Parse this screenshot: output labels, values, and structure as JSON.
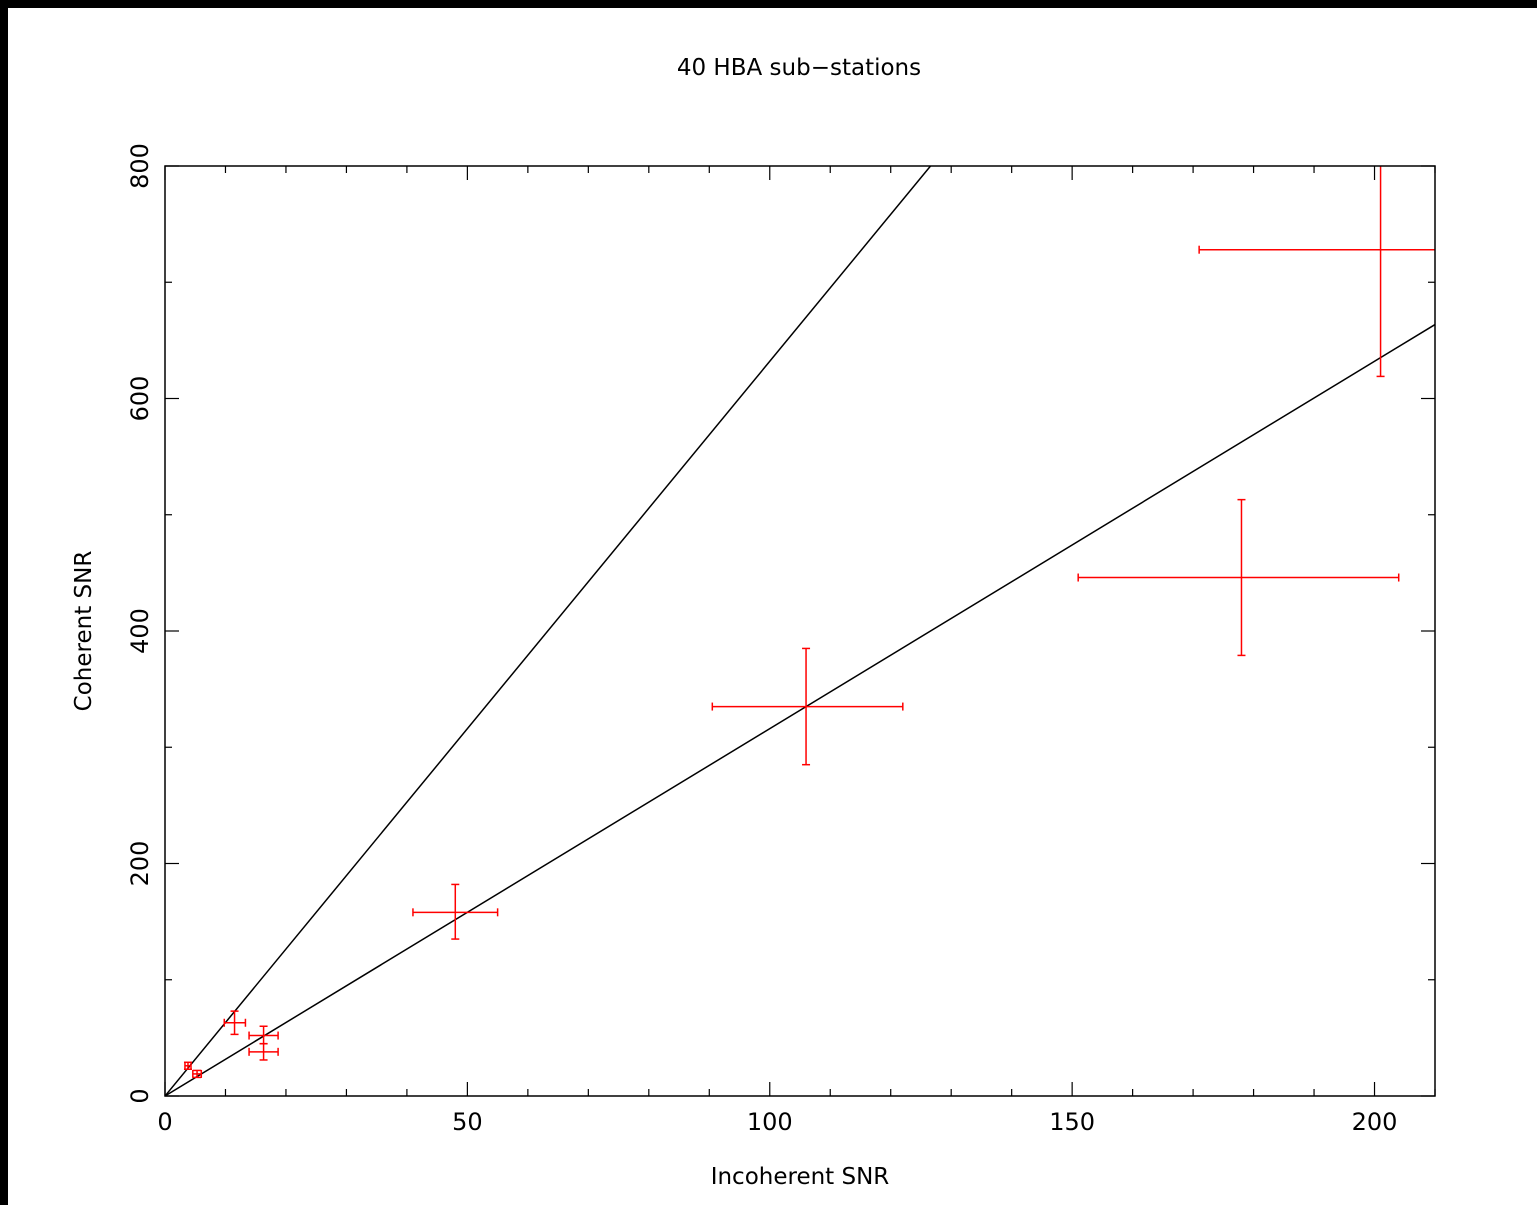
{
  "chart_data": {
    "type": "scatter",
    "title": "40 HBA sub−stations",
    "xlabel": "Incoherent SNR",
    "ylabel": "Coherent SNR",
    "xlim": [
      0,
      210
    ],
    "ylim": [
      0,
      800
    ],
    "x_ticks": [
      0,
      50,
      100,
      150,
      200
    ],
    "x_tick_labels": [
      "0",
      "50",
      "100",
      "150",
      "200"
    ],
    "x_minor_step": 10,
    "y_ticks": [
      0,
      200,
      400,
      600,
      800
    ],
    "y_tick_labels": [
      "0",
      "200",
      "400",
      "600",
      "800"
    ],
    "y_minor_step": 100,
    "grid": false,
    "colors": {
      "background": "#ffffff",
      "frame": "#000000",
      "points": "#ff0000",
      "lines": "#000000",
      "outer_border": "#000000"
    },
    "series": [
      {
        "points": [
          {
            "x": 3.8,
            "y": 26,
            "xerr": [
              3.3,
              4.3
            ],
            "yerr": [
              23,
              29
            ]
          },
          {
            "x": 5.3,
            "y": 19,
            "xerr": [
              4.6,
              6.0
            ],
            "yerr": [
              16,
              22
            ]
          },
          {
            "x": 11.5,
            "y": 63,
            "xerr": [
              9.8,
              13.3
            ],
            "yerr": [
              53,
              73
            ]
          },
          {
            "x": 16.3,
            "y": 52,
            "xerr": [
              13.9,
              18.7
            ],
            "yerr": [
              45,
              60
            ]
          },
          {
            "x": 16.3,
            "y": 38,
            "xerr": [
              13.9,
              18.7
            ],
            "yerr": [
              31,
              45
            ]
          },
          {
            "x": 48,
            "y": 158,
            "xerr": [
              41,
              55
            ],
            "yerr": [
              135,
              182
            ]
          },
          {
            "x": 106,
            "y": 335,
            "xerr": [
              90.5,
              122
            ],
            "yerr": [
              285,
              385
            ]
          },
          {
            "x": 178,
            "y": 446,
            "xerr": [
              151,
              204
            ],
            "yerr": [
              379,
              513
            ]
          },
          {
            "x": 201,
            "y": 728,
            "xerr": [
              171,
              231
            ],
            "yerr": [
              619,
              837
            ]
          }
        ]
      }
    ],
    "reference_lines": [
      {
        "slope": 6.32
      },
      {
        "slope": 3.16
      }
    ]
  }
}
